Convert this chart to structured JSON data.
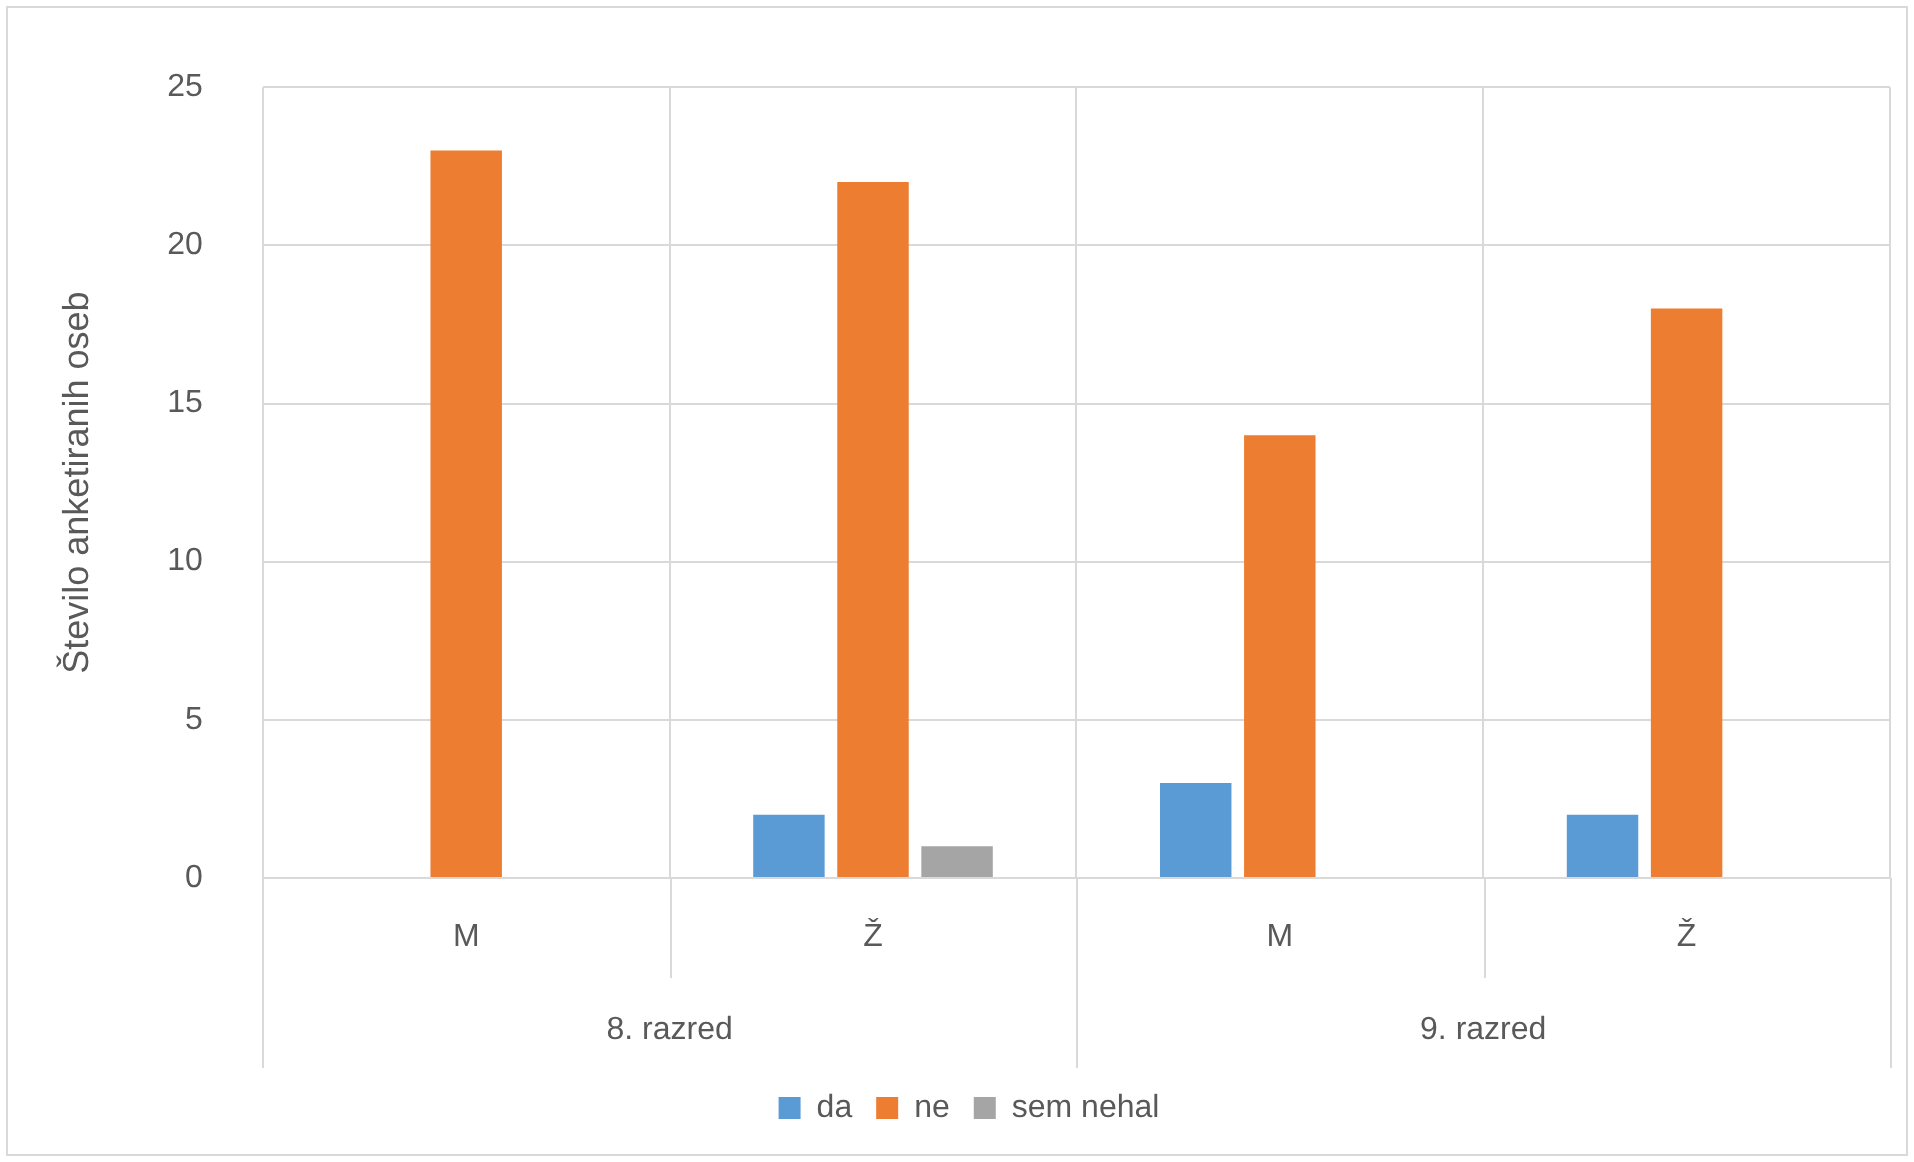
{
  "chart_data": {
    "type": "bar",
    "ylabel": "Število anketiranih oseb",
    "categories": [
      "M",
      "Ž",
      "M",
      "Ž"
    ],
    "series": [
      {
        "name": "da",
        "color": "#5b9bd5",
        "values": [
          0,
          2,
          3,
          2
        ]
      },
      {
        "name": "ne",
        "color": "#ed7d31",
        "values": [
          23,
          22,
          14,
          18
        ]
      },
      {
        "name": "sem nehal",
        "color": "#a5a5a5",
        "values": [
          0,
          1,
          0,
          0
        ]
      }
    ],
    "ylim": [
      0,
      25
    ],
    "yticks": [
      0,
      5,
      10,
      15,
      20,
      25
    ],
    "grid": true,
    "legend": "bottom",
    "annotations": [
      "8. razred",
      "9. razred"
    ]
  }
}
